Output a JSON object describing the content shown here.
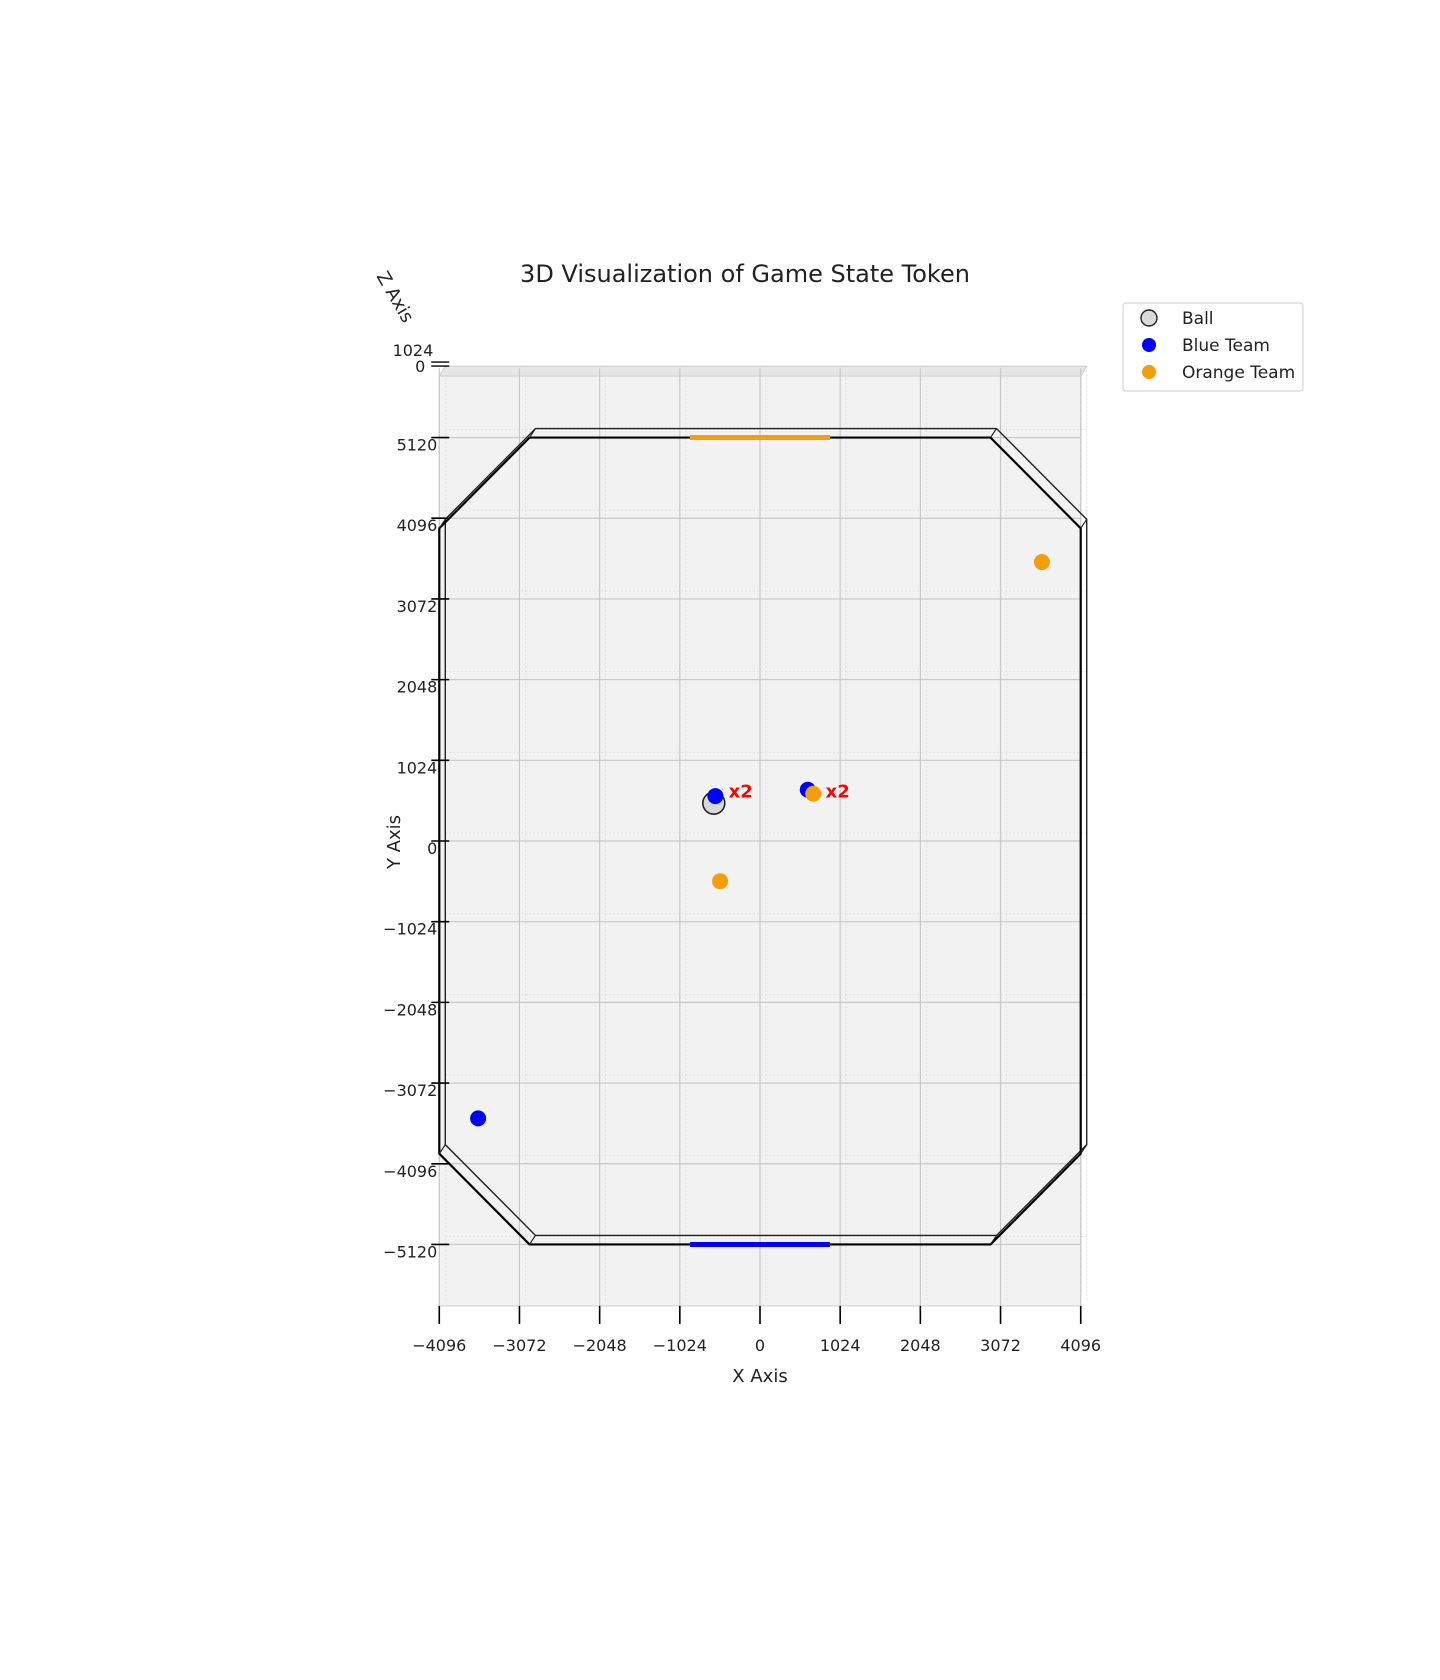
{
  "chart_data": {
    "type": "scatter",
    "title": "3D Visualization of Game State Token",
    "xlabel": "X Axis",
    "ylabel": "Y Axis",
    "zlabel": "Z Axis",
    "view": "top-down",
    "xlim": [
      -4096,
      4096
    ],
    "ylim": [
      -5900,
      5900
    ],
    "x_ticks": [
      -4096,
      -3072,
      -2048,
      -1024,
      0,
      1024,
      2048,
      3072,
      4096
    ],
    "x_tick_labels": [
      "−4096",
      "−3072",
      "−2048",
      "−1024",
      "0",
      "1024",
      "2048",
      "3072",
      "4096"
    ],
    "y_ticks": [
      -5120,
      -4096,
      -3072,
      -2048,
      -1024,
      0,
      1024,
      2048,
      3072,
      4096,
      5120
    ],
    "y_tick_labels": [
      "−5120",
      "−4096",
      "−3072",
      "−2048",
      "−1024",
      "0",
      "1024",
      "2048",
      "3072",
      "4096",
      "5120"
    ],
    "z_tick_labels": [
      "0",
      "1024"
    ],
    "grid": true,
    "legend_position": "upper-right outside",
    "arena_outline": [
      [
        -2944,
        5120
      ],
      [
        2944,
        5120
      ],
      [
        4096,
        3968
      ],
      [
        4096,
        -3968
      ],
      [
        2944,
        -5120
      ],
      [
        -2944,
        -5120
      ],
      [
        -4096,
        -3968
      ],
      [
        -4096,
        3968
      ]
    ],
    "goals": [
      {
        "team": "orange",
        "x": [
          -893,
          893
        ],
        "y": 5120,
        "color": "#f59e0b"
      },
      {
        "team": "blue",
        "x": [
          -893,
          893
        ],
        "y": -5120,
        "color": "#0000ff"
      }
    ],
    "series": [
      {
        "name": "Ball",
        "color": "#d9d9d9",
        "edge": "#222222",
        "points": [
          {
            "x": -590,
            "y": 480
          }
        ]
      },
      {
        "name": "Blue Team",
        "color": "#0000ff",
        "points": [
          {
            "x": -570,
            "y": 570
          },
          {
            "x": 610,
            "y": 650
          },
          {
            "x": -3600,
            "y": -3520
          }
        ]
      },
      {
        "name": "Orange Team",
        "color": "#f59e0b",
        "points": [
          {
            "x": 680,
            "y": 600
          },
          {
            "x": 3600,
            "y": 3540
          },
          {
            "x": -510,
            "y": -510
          }
        ]
      }
    ],
    "annotations": [
      {
        "text": "x2",
        "x": -580,
        "y": 600,
        "color": "#ff0000"
      },
      {
        "text": "x2",
        "x": 660,
        "y": 600,
        "color": "#ff0000"
      }
    ]
  }
}
